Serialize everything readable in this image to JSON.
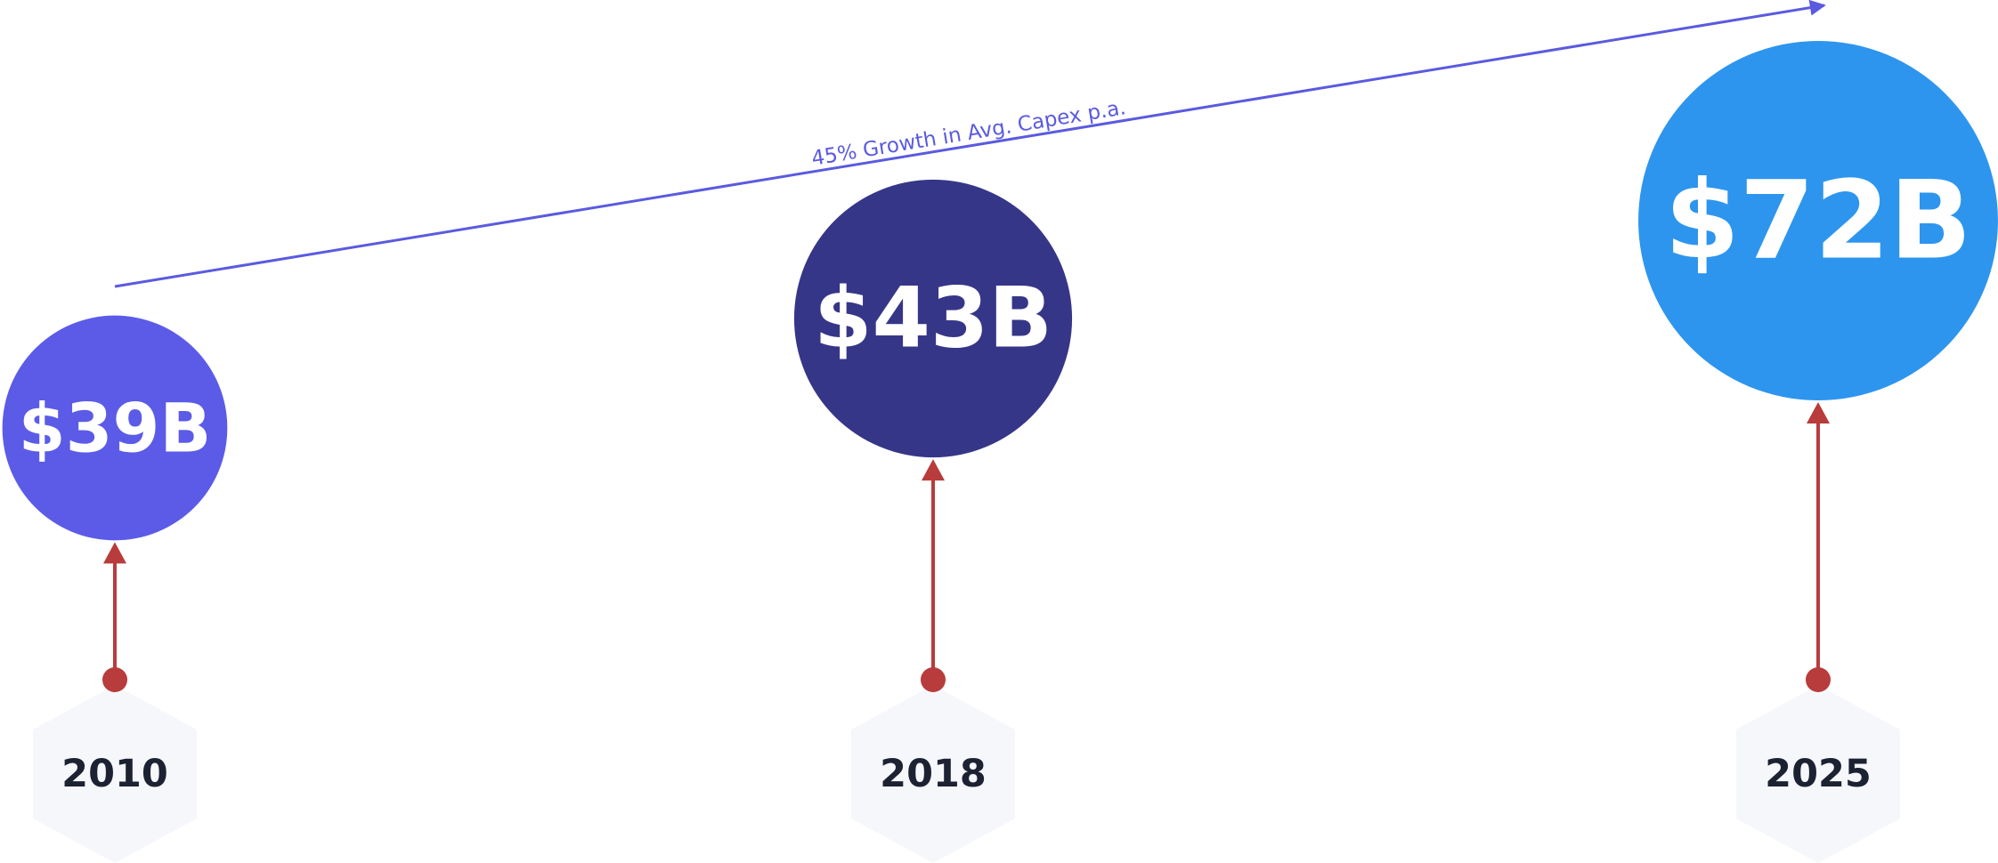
{
  "chart_data": {
    "type": "bubble",
    "annotation": "45% Growth in Avg. Capex p.a.",
    "categories": [
      "2010",
      "2018",
      "2025"
    ],
    "values": [
      39,
      43,
      72
    ],
    "value_labels": [
      "$39B",
      "$43B",
      "$72B"
    ],
    "colors": [
      "#5b5be8",
      "#363688",
      "#2d95ee"
    ]
  }
}
